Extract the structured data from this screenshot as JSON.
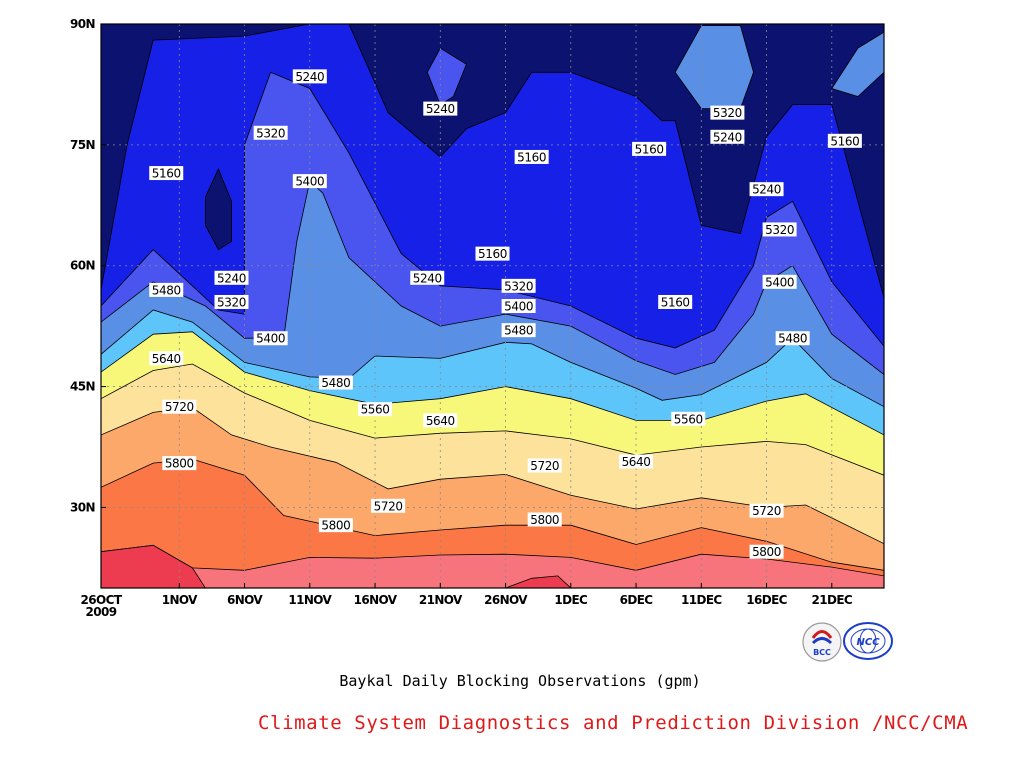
{
  "chart_data": {
    "type": "heatmap",
    "subtype": "filled-contour",
    "title": "Baykal Daily Blocking Observations (gpm)",
    "x_ticks": [
      "26OCT 2009",
      "1NOV",
      "6NOV",
      "11NOV",
      "16NOV",
      "21NOV",
      "26NOV",
      "1DEC",
      "6DEC",
      "11DEC",
      "16DEC",
      "21DEC"
    ],
    "x_range": [
      "2009-10-26",
      "2009-12-25"
    ],
    "y_ticks": [
      "30N",
      "45N",
      "60N",
      "75N",
      "90N"
    ],
    "y_range": [
      20,
      90
    ],
    "grid": true,
    "contour_levels": [
      5160,
      5240,
      5320,
      5400,
      5480,
      5560,
      5640,
      5720,
      5800,
      5880
    ],
    "fill_colors": [
      "#0b1270",
      "#1620e6",
      "#4a54ee",
      "#5a8fe6",
      "#5ec5fa",
      "#f7f77a",
      "#fde29c",
      "#fca86a",
      "#fb7846",
      "#f8747c",
      "#ed3c4f"
    ],
    "band_boundaries": [
      {
        "level": 5800,
        "points": [
          [
            "2009-10-26",
            24.5
          ],
          [
            "2009-10-30",
            25.3
          ],
          [
            "2009-11-02",
            22.5
          ],
          [
            "2009-11-06",
            22.2
          ],
          [
            "2009-11-11",
            23.8
          ],
          [
            "2009-11-16",
            23.7
          ],
          [
            "2009-11-21",
            24.1
          ],
          [
            "2009-11-26",
            24.2
          ],
          [
            "2009-12-01",
            23.8
          ],
          [
            "2009-12-06",
            22.2
          ],
          [
            "2009-12-11",
            24.2
          ],
          [
            "2009-12-16",
            23.6
          ],
          [
            "2009-12-21",
            22.6
          ],
          [
            "2009-12-25",
            21.5
          ]
        ]
      },
      {
        "level": 5720,
        "points": [
          [
            "2009-10-26",
            32.5
          ],
          [
            "2009-10-30",
            35.5
          ],
          [
            "2009-11-02",
            36
          ],
          [
            "2009-11-06",
            34
          ],
          [
            "2009-11-09",
            29
          ],
          [
            "2009-11-16",
            26.5
          ],
          [
            "2009-11-21",
            27.2
          ],
          [
            "2009-11-26",
            27.8
          ],
          [
            "2009-12-01",
            27.8
          ],
          [
            "2009-12-06",
            25.4
          ],
          [
            "2009-12-11",
            27.5
          ],
          [
            "2009-12-16",
            25.8
          ],
          [
            "2009-12-21",
            23.2
          ],
          [
            "2009-12-25",
            22.2
          ]
        ]
      },
      {
        "level": 5640,
        "points": [
          [
            "2009-10-26",
            39
          ],
          [
            "2009-10-30",
            41.8
          ],
          [
            "2009-11-02",
            42.4
          ],
          [
            "2009-11-05",
            39
          ],
          [
            "2009-11-08",
            37.5
          ],
          [
            "2009-11-13",
            35.6
          ],
          [
            "2009-11-17",
            32.3
          ],
          [
            "2009-11-21",
            33.5
          ],
          [
            "2009-11-26",
            34.1
          ],
          [
            "2009-12-01",
            31.5
          ],
          [
            "2009-12-06",
            29.8
          ],
          [
            "2009-12-11",
            31.2
          ],
          [
            "2009-12-16",
            30
          ],
          [
            "2009-12-19",
            30.3
          ],
          [
            "2009-12-25",
            25.5
          ]
        ]
      },
      {
        "level": 5560,
        "points": [
          [
            "2009-10-26",
            43.5
          ],
          [
            "2009-10-30",
            47
          ],
          [
            "2009-11-02",
            47.8
          ],
          [
            "2009-11-06",
            44.2
          ],
          [
            "2009-11-11",
            40.8
          ],
          [
            "2009-11-16",
            38.6
          ],
          [
            "2009-11-21",
            39.2
          ],
          [
            "2009-11-26",
            39.5
          ],
          [
            "2009-12-01",
            38.5
          ],
          [
            "2009-12-06",
            36.5
          ],
          [
            "2009-12-11",
            37.5
          ],
          [
            "2009-12-16",
            38.2
          ],
          [
            "2009-12-19",
            37.8
          ],
          [
            "2009-12-25",
            34
          ]
        ]
      },
      {
        "level": 5480,
        "points": [
          [
            "2009-10-26",
            46.8
          ],
          [
            "2009-10-30",
            51.5
          ],
          [
            "2009-11-02",
            51.8
          ],
          [
            "2009-11-06",
            46.8
          ],
          [
            "2009-11-11",
            44.5
          ],
          [
            "2009-11-16",
            42.8
          ],
          [
            "2009-11-21",
            43.5
          ],
          [
            "2009-11-26",
            45
          ],
          [
            "2009-12-01",
            43.5
          ],
          [
            "2009-12-06",
            40.8
          ],
          [
            "2009-12-11",
            40.8
          ],
          [
            "2009-12-16",
            43.2
          ],
          [
            "2009-12-19",
            44.1
          ],
          [
            "2009-12-25",
            39
          ]
        ]
      },
      {
        "level": 5400,
        "points": [
          [
            "2009-10-26",
            49
          ],
          [
            "2009-10-30",
            54.5
          ],
          [
            "2009-11-02",
            53
          ],
          [
            "2009-11-06",
            48
          ],
          [
            "2009-11-11",
            46.2
          ],
          [
            "2009-11-14",
            46
          ],
          [
            "2009-11-16",
            48.8
          ],
          [
            "2009-11-21",
            48.5
          ],
          [
            "2009-11-26",
            50.5
          ],
          [
            "2009-11-28",
            50.3
          ],
          [
            "2009-12-01",
            48
          ],
          [
            "2009-12-06",
            44.8
          ],
          [
            "2009-12-08",
            43.3
          ],
          [
            "2009-12-11",
            44
          ],
          [
            "2009-12-16",
            48
          ],
          [
            "2009-12-18",
            51
          ],
          [
            "2009-12-21",
            46
          ],
          [
            "2009-12-25",
            42.5
          ]
        ]
      },
      {
        "level": 5320,
        "points": [
          [
            "2009-10-26",
            53
          ],
          [
            "2009-10-30",
            58
          ],
          [
            "2009-11-03",
            55
          ],
          [
            "2009-11-06",
            51
          ],
          [
            "2009-11-09",
            51
          ],
          [
            "2009-11-10",
            63
          ],
          [
            "2009-11-11",
            70.5
          ],
          [
            "2009-11-12",
            69
          ],
          [
            "2009-11-14",
            61
          ],
          [
            "2009-11-18",
            55
          ],
          [
            "2009-11-21",
            52.5
          ],
          [
            "2009-11-26",
            54
          ],
          [
            "2009-12-01",
            52.5
          ],
          [
            "2009-12-06",
            48.2
          ],
          [
            "2009-12-09",
            46.5
          ],
          [
            "2009-12-12",
            48
          ],
          [
            "2009-12-15",
            54
          ],
          [
            "2009-12-16",
            58
          ],
          [
            "2009-12-18",
            60
          ],
          [
            "2009-12-21",
            51.5
          ],
          [
            "2009-12-25",
            46.5
          ]
        ]
      },
      {
        "level": 5240,
        "points": [
          [
            "2009-10-26",
            55
          ],
          [
            "2009-10-30",
            62
          ],
          [
            "2009-11-04",
            54.5
          ],
          [
            "2009-11-06",
            54
          ],
          [
            "2009-11-06",
            75
          ],
          [
            "2009-11-08",
            84
          ],
          [
            "2009-11-11",
            82
          ],
          [
            "2009-11-14",
            74
          ],
          [
            "2009-11-18",
            61.5
          ],
          [
            "2009-11-21",
            57.5
          ],
          [
            "2009-11-26",
            57
          ],
          [
            "2009-12-01",
            55
          ],
          [
            "2009-12-06",
            51
          ],
          [
            "2009-12-09",
            49.8
          ],
          [
            "2009-12-12",
            52
          ],
          [
            "2009-12-15",
            60
          ],
          [
            "2009-12-16",
            66
          ],
          [
            "2009-12-18",
            68
          ],
          [
            "2009-12-21",
            58
          ],
          [
            "2009-12-25",
            50
          ]
        ]
      },
      {
        "level": 5160,
        "points": [
          [
            "2009-10-26",
            57
          ],
          [
            "2009-10-28",
            75
          ],
          [
            "2009-10-30",
            88
          ],
          [
            "2009-11-06",
            88.5
          ],
          [
            "2009-11-11",
            90
          ],
          [
            "2009-11-14",
            90
          ],
          [
            "2009-11-17",
            79
          ],
          [
            "2009-11-21",
            73.5
          ],
          [
            "2009-11-23",
            77
          ],
          [
            "2009-11-26",
            79
          ],
          [
            "2009-11-28",
            84
          ],
          [
            "2009-12-01",
            84
          ],
          [
            "2009-12-06",
            81
          ],
          [
            "2009-12-08",
            78
          ],
          [
            "2009-12-09",
            78
          ],
          [
            "2009-12-11",
            65
          ],
          [
            "2009-12-14",
            64
          ],
          [
            "2009-12-16",
            76
          ],
          [
            "2009-12-17",
            78
          ],
          [
            "2009-12-18",
            80
          ],
          [
            "2009-12-21",
            80
          ],
          [
            "2009-12-25",
            56
          ]
        ]
      }
    ],
    "contour_labels": [
      {
        "text": "5240",
        "x": "2009-11-11",
        "y": 83.5
      },
      {
        "text": "5320",
        "x": "2009-11-08",
        "y": 76.5
      },
      {
        "text": "5160",
        "x": "2009-10-31",
        "y": 71.5
      },
      {
        "text": "5400",
        "x": "2009-11-11",
        "y": 70.5
      },
      {
        "text": "5240",
        "x": "2009-11-21",
        "y": 79.5
      },
      {
        "text": "5160",
        "x": "2009-11-28",
        "y": 73.5
      },
      {
        "text": "5160",
        "x": "2009-12-07",
        "y": 74.5
      },
      {
        "text": "5320",
        "x": "2009-12-13",
        "y": 79
      },
      {
        "text": "5240",
        "x": "2009-12-13",
        "y": 76
      },
      {
        "text": "5160",
        "x": "2009-12-22",
        "y": 75.5
      },
      {
        "text": "5240",
        "x": "2009-12-16",
        "y": 69.5
      },
      {
        "text": "5320",
        "x": "2009-12-17",
        "y": 64.5
      },
      {
        "text": "5160",
        "x": "2009-11-25",
        "y": 61.5
      },
      {
        "text": "5240",
        "x": "2009-11-20",
        "y": 58.5
      },
      {
        "text": "5320",
        "x": "2009-11-27",
        "y": 57.5
      },
      {
        "text": "5400",
        "x": "2009-11-27",
        "y": 55
      },
      {
        "text": "5480",
        "x": "2009-11-27",
        "y": 52
      },
      {
        "text": "5160",
        "x": "2009-12-09",
        "y": 55.5
      },
      {
        "text": "5400",
        "x": "2009-12-17",
        "y": 58
      },
      {
        "text": "5480",
        "x": "2009-12-18",
        "y": 51
      },
      {
        "text": "5480",
        "x": "2009-10-31",
        "y": 57
      },
      {
        "text": "5240",
        "x": "2009-11-05",
        "y": 58.5
      },
      {
        "text": "5320",
        "x": "2009-11-05",
        "y": 55.5
      },
      {
        "text": "5400",
        "x": "2009-11-08",
        "y": 51
      },
      {
        "text": "5640",
        "x": "2009-10-31",
        "y": 48.5
      },
      {
        "text": "5480",
        "x": "2009-11-13",
        "y": 45.5
      },
      {
        "text": "5720",
        "x": "2009-11-01",
        "y": 42.5
      },
      {
        "text": "5560",
        "x": "2009-11-16",
        "y": 42.2
      },
      {
        "text": "5640",
        "x": "2009-11-21",
        "y": 40.8
      },
      {
        "text": "5560",
        "x": "2009-12-10",
        "y": 41
      },
      {
        "text": "5800",
        "x": "2009-11-01",
        "y": 35.5
      },
      {
        "text": "5640",
        "x": "2009-12-06",
        "y": 35.7
      },
      {
        "text": "5720",
        "x": "2009-11-29",
        "y": 35.2
      },
      {
        "text": "5720",
        "x": "2009-11-17",
        "y": 30.2
      },
      {
        "text": "5800",
        "x": "2009-11-13",
        "y": 27.8
      },
      {
        "text": "5800",
        "x": "2009-11-29",
        "y": 28.5
      },
      {
        "text": "5720",
        "x": "2009-12-16",
        "y": 29.6
      },
      {
        "text": "5800",
        "x": "2009-12-16",
        "y": 24.5
      }
    ],
    "high_cells": [
      {
        "level": 5880,
        "points": [
          [
            "2009-10-26",
            20
          ],
          [
            "2009-10-26",
            24.5
          ],
          [
            "2009-10-30",
            25.3
          ],
          [
            "2009-11-02",
            22.5
          ],
          [
            "2009-11-03",
            20
          ]
        ]
      },
      {
        "level": 5880,
        "points": [
          [
            "2009-11-26",
            20
          ],
          [
            "2009-11-28",
            21.2
          ],
          [
            "2009-11-30",
            21.5
          ],
          [
            "2009-12-01",
            20
          ]
        ]
      },
      {
        "level": 5160,
        "points": [
          [
            "2009-11-03",
            68.5
          ],
          [
            "2009-11-04",
            72
          ],
          [
            "2009-11-05",
            68
          ],
          [
            "2009-11-05",
            63
          ],
          [
            "2009-11-04",
            62
          ],
          [
            "2009-11-03",
            65
          ]
        ]
      },
      {
        "level": 5320,
        "points": [
          [
            "2009-12-09",
            84
          ],
          [
            "2009-12-11",
            89.8
          ],
          [
            "2009-12-14",
            89.8
          ],
          [
            "2009-12-15",
            84
          ],
          [
            "2009-12-14",
            79.5
          ],
          [
            "2009-12-11",
            79.5
          ]
        ]
      },
      {
        "level": 5320,
        "points": [
          [
            "2009-12-21",
            82
          ],
          [
            "2009-12-23",
            87
          ],
          [
            "2009-12-25",
            89
          ],
          [
            "2009-12-25",
            84
          ],
          [
            "2009-12-23",
            81
          ]
        ]
      },
      {
        "level": 5160,
        "points": [
          [
            "2009-11-20",
            84
          ],
          [
            "2009-11-21",
            87
          ],
          [
            "2009-11-23",
            85
          ],
          [
            "2009-11-22",
            81
          ],
          [
            "2009-11-21",
            80
          ]
        ]
      }
    ]
  },
  "caption": "Baykal Daily Blocking Observations (gpm)",
  "credit": "Climate System Diagnostics and Prediction Division /NCC/CMA",
  "logos": [
    {
      "name": "bcc-logo",
      "text": "BCC"
    },
    {
      "name": "ncc-logo",
      "text": "NCC"
    }
  ]
}
